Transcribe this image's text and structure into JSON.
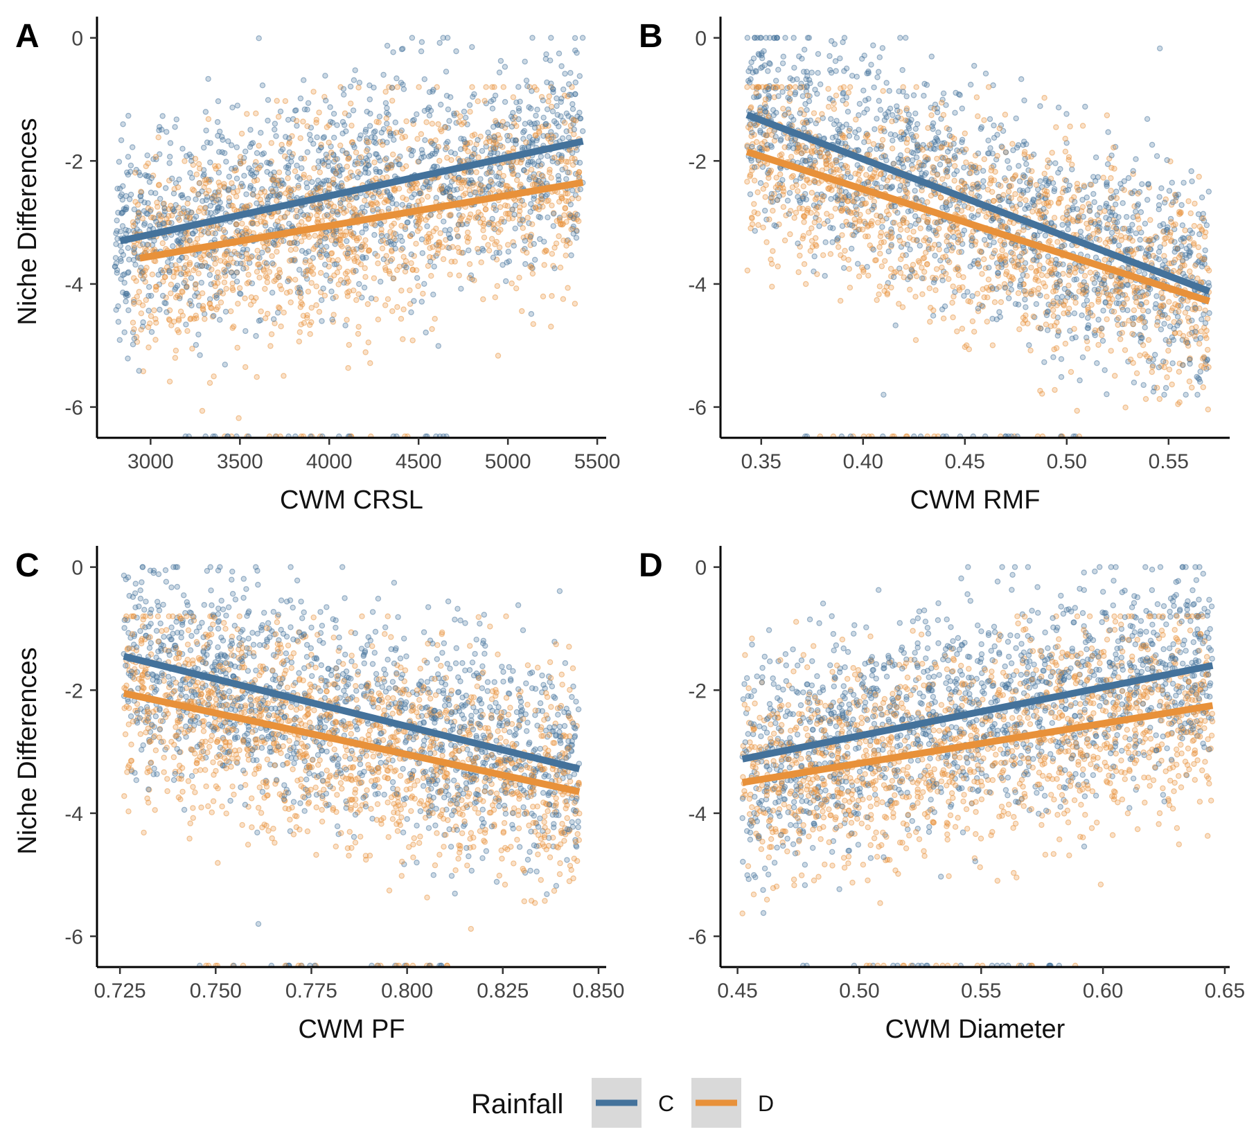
{
  "chart_data": [
    {
      "type": "scatter",
      "panel_label": "A",
      "xlabel": "CWM CRSL",
      "ylabel": "Niche Differences",
      "xlim": [
        2700,
        5550
      ],
      "ylim": [
        -6.5,
        0.3
      ],
      "x_ticks": [
        3000,
        3500,
        4000,
        4500,
        5000,
        5500
      ],
      "x_tick_labels": [
        "3000",
        "3500",
        "4000",
        "4500",
        "5000",
        "5500"
      ],
      "y_ticks": [
        0,
        -2,
        -4,
        -6
      ],
      "y_tick_labels": [
        "0",
        "-2",
        "-4",
        "-6"
      ],
      "points_approx": {
        "C": {
          "x_range": [
            2800,
            5420
          ],
          "y_center": -2.4,
          "y_spread": [
            -5.8,
            0.0
          ]
        },
        "D": {
          "x_range": [
            2900,
            5400
          ],
          "y_center": -3.0,
          "y_spread": [
            -6.2,
            -0.8
          ]
        }
      },
      "series": [
        {
          "name": "C",
          "x": [
            2830,
            5420
          ],
          "y": [
            -3.3,
            -1.68
          ]
        },
        {
          "name": "D",
          "x": [
            2940,
            5420
          ],
          "y": [
            -3.58,
            -2.35
          ]
        }
      ]
    },
    {
      "type": "scatter",
      "panel_label": "B",
      "xlabel": "CWM RMF",
      "ylabel": "",
      "xlim": [
        0.33,
        0.58
      ],
      "ylim": [
        -6.5,
        0.3
      ],
      "x_ticks": [
        0.35,
        0.4,
        0.45,
        0.5,
        0.55
      ],
      "x_tick_labels": [
        "0.35",
        "0.40",
        "0.45",
        "0.50",
        "0.55"
      ],
      "y_ticks": [
        0,
        -2,
        -4,
        -6
      ],
      "y_tick_labels": [
        "0",
        "-2",
        "-4",
        "-6"
      ],
      "points_approx": {
        "C": {
          "x_range": [
            0.343,
            0.57
          ],
          "y_center": -2.4,
          "y_spread": [
            -5.8,
            0.0
          ]
        },
        "D": {
          "x_range": [
            0.343,
            0.57
          ],
          "y_center": -3.0,
          "y_spread": [
            -6.2,
            -0.8
          ]
        }
      },
      "series": [
        {
          "name": "C",
          "x": [
            0.343,
            0.57
          ],
          "y": [
            -1.25,
            -4.12
          ]
        },
        {
          "name": "D",
          "x": [
            0.343,
            0.57
          ],
          "y": [
            -1.85,
            -4.28
          ]
        }
      ]
    },
    {
      "type": "scatter",
      "panel_label": "C",
      "xlabel": "CWM PF",
      "ylabel": "Niche Differences",
      "xlim": [
        0.719,
        0.852
      ],
      "ylim": [
        -6.5,
        0.3
      ],
      "x_ticks": [
        0.725,
        0.75,
        0.775,
        0.8,
        0.825,
        0.85
      ],
      "x_tick_labels": [
        "0.725",
        "0.750",
        "0.775",
        "0.800",
        "0.825",
        "0.850"
      ],
      "y_ticks": [
        0,
        -2,
        -4,
        -6
      ],
      "y_tick_labels": [
        "0",
        "-2",
        "-4",
        "-6"
      ],
      "points_approx": {
        "C": {
          "x_range": [
            0.726,
            0.845
          ],
          "y_center": -2.4,
          "y_spread": [
            -5.8,
            0.0
          ]
        },
        "D": {
          "x_range": [
            0.726,
            0.845
          ],
          "y_center": -3.0,
          "y_spread": [
            -6.2,
            -0.8
          ]
        }
      },
      "series": [
        {
          "name": "C",
          "x": [
            0.726,
            0.845
          ],
          "y": [
            -1.45,
            -3.28
          ]
        },
        {
          "name": "D",
          "x": [
            0.726,
            0.845
          ],
          "y": [
            -2.05,
            -3.65
          ]
        }
      ]
    },
    {
      "type": "scatter",
      "panel_label": "D",
      "xlabel": "CWM Diameter",
      "ylabel": "",
      "xlim": [
        0.443,
        0.652
      ],
      "ylim": [
        -6.5,
        0.3
      ],
      "x_ticks": [
        0.45,
        0.5,
        0.55,
        0.6,
        0.65
      ],
      "x_tick_labels": [
        "0.45",
        "0.50",
        "0.55",
        "0.60",
        "0.65"
      ],
      "y_ticks": [
        0,
        -2,
        -4,
        -6
      ],
      "y_tick_labels": [
        "0",
        "-2",
        "-4",
        "-6"
      ],
      "points_approx": {
        "C": {
          "x_range": [
            0.452,
            0.645
          ],
          "y_center": -2.4,
          "y_spread": [
            -5.8,
            0.0
          ]
        },
        "D": {
          "x_range": [
            0.452,
            0.645
          ],
          "y_center": -3.0,
          "y_spread": [
            -6.2,
            -0.8
          ]
        }
      },
      "series": [
        {
          "name": "C",
          "x": [
            0.452,
            0.645
          ],
          "y": [
            -3.12,
            -1.6
          ]
        },
        {
          "name": "D",
          "x": [
            0.452,
            0.645
          ],
          "y": [
            -3.5,
            -2.25
          ]
        }
      ]
    }
  ],
  "legend": {
    "title": "Rainfall",
    "entries": [
      {
        "name": "C",
        "label": "C",
        "color": "#44729b"
      },
      {
        "name": "D",
        "label": "D",
        "color": "#e8913a"
      }
    ],
    "key_background": "#d9d9d9"
  },
  "colors": {
    "C": "#44729b",
    "D": "#e8913a",
    "axis": "#000000"
  }
}
